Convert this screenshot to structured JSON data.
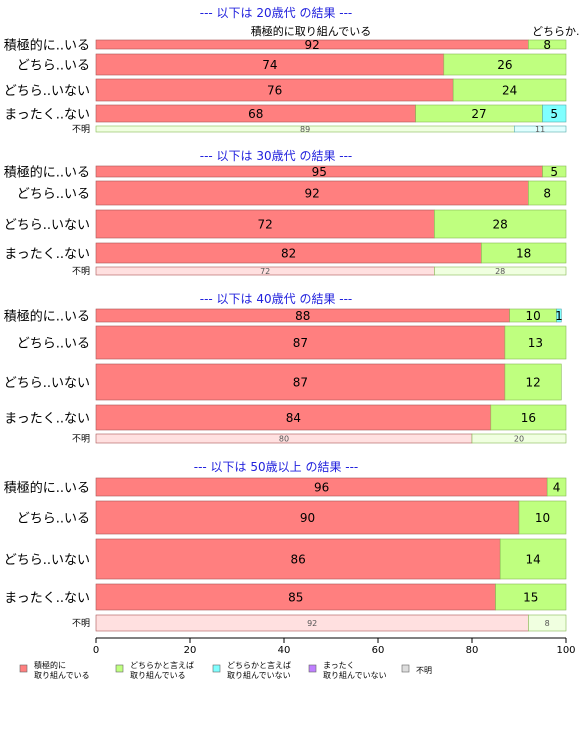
{
  "chart_data": {
    "type": "bar",
    "orientation": "horizontal",
    "stacked": true,
    "xlim": [
      0,
      100
    ],
    "xticks": [
      "0",
      "20",
      "40",
      "60",
      "80",
      "100"
    ],
    "colors": [
      "#ff7f7f",
      "#bfff7f",
      "#7fffff",
      "#bf7fff",
      "#dddddd"
    ],
    "legend": {
      "placement": "bottom",
      "entries": [
        "積極的に\n取り組んでいる",
        "どちらかと言えば\n取り組んでいる",
        "どちらかと言えば\n取り組んでいない",
        "まったく\n取り組んでいない",
        "不明"
      ]
    },
    "panels": [
      {
        "title": "--- 以下は 20歳代 の結果 ---",
        "top_labels": [
          "積極的に取り組んでいる",
          "どちらか..."
        ],
        "categories": [
          "積極的に..いる",
          "どちら..いる",
          "どちら..いない",
          "まったく..ない",
          "不明"
        ],
        "rows": [
          [
            92,
            8,
            0,
            0,
            0
          ],
          [
            74,
            26,
            0,
            0,
            0
          ],
          [
            76,
            24,
            0,
            0,
            0
          ],
          [
            68,
            27,
            5,
            0,
            0
          ],
          [
            0,
            89,
            11,
            0,
            0
          ]
        ],
        "labels": [
          [
            "92",
            "8",
            "",
            "",
            ""
          ],
          [
            "74",
            "26",
            "",
            "",
            ""
          ],
          [
            "76",
            "24",
            "",
            "",
            ""
          ],
          [
            "68",
            "27",
            "5",
            "",
            ""
          ],
          [
            "",
            "89",
            "11",
            "",
            ""
          ]
        ]
      },
      {
        "title": "--- 以下は 30歳代 の結果 ---",
        "top_labels": [],
        "categories": [
          "積極的に..いる",
          "どちら..いる",
          "どちら..いない",
          "まったく..ない",
          "不明"
        ],
        "rows": [
          [
            95,
            5,
            0,
            0,
            0
          ],
          [
            92,
            8,
            0,
            0,
            0
          ],
          [
            72,
            28,
            0,
            0,
            0
          ],
          [
            82,
            18,
            0,
            0,
            0
          ],
          [
            72,
            28,
            0,
            0,
            0
          ]
        ],
        "labels": [
          [
            "95",
            "5",
            "",
            "",
            ""
          ],
          [
            "92",
            "8",
            "",
            "",
            ""
          ],
          [
            "72",
            "28",
            "",
            "",
            ""
          ],
          [
            "82",
            "18",
            "",
            "",
            ""
          ],
          [
            "72",
            "28",
            "",
            "",
            ""
          ]
        ]
      },
      {
        "title": "--- 以下は 40歳代 の結果 ---",
        "top_labels": [],
        "categories": [
          "積極的に..いる",
          "どちら..いる",
          "どちら..いない",
          "まったく..ない",
          "不明"
        ],
        "rows": [
          [
            88,
            10,
            1,
            0,
            0
          ],
          [
            87,
            13,
            0,
            0,
            0
          ],
          [
            87,
            12,
            0,
            0,
            0
          ],
          [
            84,
            16,
            0,
            0,
            0
          ],
          [
            80,
            20,
            0,
            0,
            0
          ]
        ],
        "labels": [
          [
            "88",
            "10",
            "1",
            "",
            ""
          ],
          [
            "87",
            "13",
            "",
            "",
            ""
          ],
          [
            "87",
            "12",
            "",
            "",
            ""
          ],
          [
            "84",
            "16",
            "",
            "",
            ""
          ],
          [
            "80",
            "20",
            "",
            "",
            ""
          ]
        ]
      },
      {
        "title": "--- 以下は 50歳以上 の結果 ---",
        "top_labels": [],
        "categories": [
          "積極的に..いる",
          "どちら..いる",
          "どちら..いない",
          "まったく..ない",
          "不明"
        ],
        "rows": [
          [
            96,
            4,
            0,
            0,
            0
          ],
          [
            90,
            10,
            0,
            0,
            0
          ],
          [
            86,
            14,
            0,
            0,
            0
          ],
          [
            85,
            15,
            0,
            0,
            0
          ],
          [
            92,
            8,
            0,
            0,
            0
          ]
        ],
        "labels": [
          [
            "96",
            "4",
            "",
            "",
            ""
          ],
          [
            "90",
            "10",
            "",
            "",
            ""
          ],
          [
            "86",
            "14",
            "",
            "",
            ""
          ],
          [
            "85",
            "15",
            "",
            "",
            ""
          ],
          [
            "92",
            "8",
            "",
            "",
            ""
          ]
        ]
      }
    ]
  }
}
